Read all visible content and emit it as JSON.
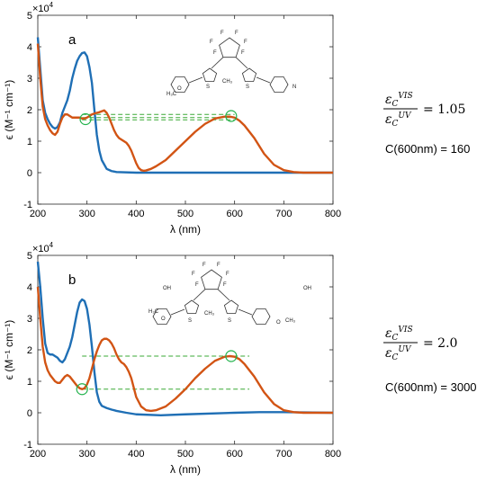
{
  "chart_data": [
    {
      "type": "line",
      "panel_label": "a",
      "exponent_label": "×10",
      "exponent_power": "4",
      "xlabel": "λ (nm)",
      "ylabel": "ϵ (M⁻¹ cm⁻¹)",
      "xlim": [
        200,
        800
      ],
      "ylim": [
        -1,
        5
      ],
      "xticks": [
        "200",
        "300",
        "400",
        "500",
        "600",
        "700",
        "800"
      ],
      "yticks": [
        "-1",
        "0",
        "1",
        "2",
        "3",
        "4",
        "5"
      ],
      "grid": false,
      "series": [
        {
          "color": "#1f6fb5",
          "x": [
            200,
            205,
            210,
            215,
            220,
            225,
            230,
            235,
            240,
            245,
            250,
            255,
            260,
            265,
            270,
            275,
            280,
            285,
            290,
            295,
            300,
            305,
            310,
            315,
            320,
            325,
            330,
            340,
            350,
            360,
            400,
            500,
            600,
            700,
            800
          ],
          "y": [
            4.3,
            3.3,
            2.3,
            1.9,
            1.7,
            1.55,
            1.45,
            1.4,
            1.45,
            1.6,
            1.9,
            2.1,
            2.3,
            2.6,
            3.0,
            3.3,
            3.55,
            3.7,
            3.8,
            3.82,
            3.7,
            3.35,
            2.85,
            2.0,
            1.2,
            0.7,
            0.4,
            0.12,
            0.05,
            0.02,
            0.0,
            0.0,
            0.0,
            0.0,
            0.0
          ]
        },
        {
          "color": "#d25414",
          "x": [
            200,
            205,
            210,
            215,
            220,
            225,
            230,
            235,
            240,
            245,
            250,
            255,
            260,
            265,
            270,
            275,
            280,
            285,
            290,
            295,
            300,
            305,
            310,
            315,
            320,
            325,
            330,
            335,
            340,
            345,
            350,
            355,
            360,
            365,
            370,
            375,
            380,
            385,
            390,
            395,
            400,
            405,
            410,
            415,
            420,
            430,
            440,
            460,
            480,
            500,
            520,
            540,
            560,
            580,
            590,
            600,
            610,
            620,
            640,
            660,
            680,
            700,
            720,
            740,
            760,
            780,
            800
          ],
          "y": [
            4.1,
            3.0,
            2.1,
            1.7,
            1.5,
            1.35,
            1.25,
            1.2,
            1.3,
            1.55,
            1.75,
            1.85,
            1.85,
            1.8,
            1.75,
            1.75,
            1.75,
            1.75,
            1.72,
            1.72,
            1.75,
            1.8,
            1.85,
            1.88,
            1.9,
            1.92,
            1.95,
            1.98,
            1.9,
            1.75,
            1.55,
            1.35,
            1.2,
            1.1,
            1.05,
            1.0,
            0.95,
            0.85,
            0.7,
            0.5,
            0.3,
            0.15,
            0.08,
            0.06,
            0.07,
            0.12,
            0.2,
            0.4,
            0.7,
            1.0,
            1.3,
            1.55,
            1.72,
            1.78,
            1.78,
            1.75,
            1.65,
            1.5,
            1.1,
            0.6,
            0.25,
            0.08,
            0.02,
            0.0,
            0.0,
            0.0,
            0.0
          ]
        }
      ],
      "markers": [
        {
          "x": 297,
          "y": 1.7
        },
        {
          "x": 593,
          "y": 1.8
        }
      ],
      "reference_lines": [
        {
          "x1": 290,
          "x2": 600,
          "y": 1.85
        },
        {
          "x1": 290,
          "x2": 600,
          "y": 1.75
        },
        {
          "x1": 290,
          "x2": 600,
          "y": 1.68
        }
      ]
    },
    {
      "type": "line",
      "panel_label": "b",
      "exponent_label": "×10",
      "exponent_power": "4",
      "xlabel": "λ (nm)",
      "ylabel": "ϵ (M⁻¹ cm⁻¹)",
      "xlim": [
        200,
        800
      ],
      "ylim": [
        -1,
        5
      ],
      "xticks": [
        "200",
        "300",
        "400",
        "500",
        "600",
        "700",
        "800"
      ],
      "yticks": [
        "-1",
        "0",
        "1",
        "2",
        "3",
        "4",
        "5"
      ],
      "grid": false,
      "series": [
        {
          "color": "#1f6fb5",
          "x": [
            200,
            205,
            210,
            215,
            220,
            225,
            230,
            235,
            240,
            245,
            250,
            255,
            260,
            265,
            270,
            275,
            280,
            285,
            290,
            295,
            300,
            305,
            310,
            315,
            320,
            325,
            330,
            340,
            350,
            360,
            380,
            400,
            450,
            500,
            600,
            650,
            700,
            800
          ],
          "y": [
            4.8,
            4.0,
            3.0,
            2.2,
            1.9,
            1.85,
            1.85,
            1.8,
            1.75,
            1.65,
            1.6,
            1.7,
            1.9,
            2.1,
            2.4,
            2.8,
            3.2,
            3.5,
            3.6,
            3.55,
            3.3,
            2.8,
            2.1,
            1.3,
            0.65,
            0.35,
            0.22,
            0.15,
            0.1,
            0.06,
            0.0,
            -0.05,
            -0.08,
            -0.05,
            0.0,
            0.02,
            0.02,
            0.0
          ]
        },
        {
          "color": "#d25414",
          "x": [
            200,
            205,
            210,
            215,
            220,
            225,
            230,
            235,
            240,
            245,
            250,
            255,
            260,
            265,
            270,
            275,
            280,
            285,
            290,
            295,
            300,
            305,
            310,
            315,
            320,
            325,
            330,
            335,
            340,
            345,
            350,
            355,
            360,
            365,
            370,
            375,
            380,
            385,
            390,
            395,
            400,
            410,
            420,
            430,
            440,
            460,
            480,
            500,
            520,
            540,
            560,
            580,
            590,
            600,
            610,
            620,
            640,
            660,
            680,
            700,
            720,
            740,
            760,
            780,
            800
          ],
          "y": [
            4.0,
            3.0,
            2.1,
            1.6,
            1.35,
            1.2,
            1.1,
            1.0,
            0.95,
            0.95,
            1.05,
            1.15,
            1.2,
            1.15,
            1.05,
            0.95,
            0.85,
            0.78,
            0.75,
            0.78,
            0.9,
            1.1,
            1.4,
            1.7,
            1.95,
            2.15,
            2.3,
            2.35,
            2.35,
            2.3,
            2.2,
            2.05,
            1.85,
            1.7,
            1.6,
            1.55,
            1.45,
            1.3,
            1.1,
            0.8,
            0.5,
            0.2,
            0.08,
            0.06,
            0.08,
            0.2,
            0.45,
            0.75,
            1.1,
            1.4,
            1.65,
            1.78,
            1.8,
            1.78,
            1.7,
            1.55,
            1.15,
            0.65,
            0.28,
            0.08,
            0.02,
            0.0,
            0.0,
            0.0,
            0.0
          ]
        }
      ],
      "markers": [
        {
          "x": 290,
          "y": 0.75
        },
        {
          "x": 593,
          "y": 1.8
        }
      ],
      "reference_lines": [
        {
          "x1": 290,
          "x2": 630,
          "y": 1.8
        },
        {
          "x1": 290,
          "x2": 630,
          "y": 0.75
        }
      ]
    }
  ],
  "annotations": [
    {
      "ratio_numerator": "VIS",
      "ratio_denominator": "UV",
      "equals": "= 1.05",
      "c_text": "C(600nm) = 160"
    },
    {
      "ratio_numerator": "VIS",
      "ratio_denominator": "UV",
      "equals": "= 2.0",
      "c_text": "C(600nm) = 3000"
    }
  ],
  "molecules": [
    {
      "labels": [
        "F",
        "F",
        "F",
        "F",
        "F",
        "F",
        "H₃C",
        "O",
        "S",
        "S",
        "CH₃",
        "N"
      ]
    },
    {
      "labels": [
        "F",
        "F",
        "F",
        "F",
        "F",
        "F",
        "OH",
        "OH",
        "H₃C",
        "O",
        "S",
        "S",
        "CH₃",
        "O",
        "CH₃"
      ]
    }
  ]
}
